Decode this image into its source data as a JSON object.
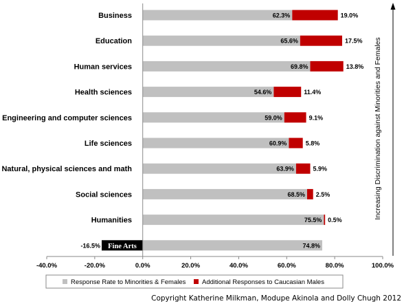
{
  "chart_data": {
    "type": "bar",
    "orientation": "horizontal",
    "stacked": true,
    "categories": [
      "Business",
      "Education",
      "Human services",
      "Health sciences",
      "Engineering and computer sciences",
      "Life sciences",
      "Natural, physical sciences and math",
      "Social sciences",
      "Humanities",
      "Fine Arts"
    ],
    "series": [
      {
        "name": "Response Rate to Minorities & Females",
        "color": "#c0c0c0",
        "values": [
          62.3,
          65.6,
          69.8,
          54.6,
          59.0,
          60.9,
          63.9,
          68.5,
          75.5,
          74.8
        ],
        "labels": [
          "62.3%",
          "65.6%",
          "69.8%",
          "54.6%",
          "59.0%",
          "60.9%",
          "63.9%",
          "68.5%",
          "75.5%",
          "74.8%"
        ]
      },
      {
        "name": "Additional Responses to Caucasian Males",
        "color": "#c00000",
        "values": [
          19.0,
          17.5,
          13.8,
          11.4,
          9.1,
          5.8,
          5.9,
          2.5,
          0.5,
          -16.5
        ],
        "labels": [
          "19.0%",
          "17.5%",
          "13.8%",
          "11.4%",
          "9.1%",
          "5.8%",
          "5.9%",
          "2.5%",
          "0.5%",
          "-16.5%"
        ]
      }
    ],
    "xlim": [
      -40,
      100
    ],
    "x_ticks": [
      "-40.0%",
      "-20.0%",
      "0.0%",
      "20.0%",
      "40.0%",
      "60.0%",
      "80.0%",
      "100.0%"
    ],
    "legend_position": "bottom",
    "side_annotation": "Increasing Discrimination  against Minorities and Females",
    "grid": false
  },
  "copyright": "Copyright Katherine Milkman, Modupe Akinola and Dolly Chugh 2012"
}
